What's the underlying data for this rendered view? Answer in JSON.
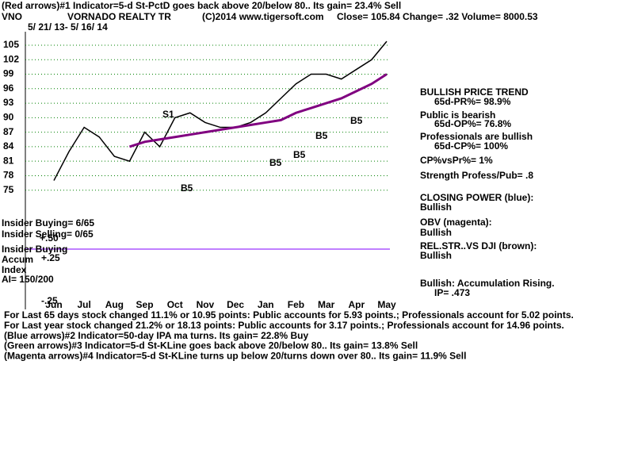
{
  "header": {
    "line1": "(Red arrows)#1 Indicator=5-d St-PctD goes back above 20/below 80.. Its gain= 23.4% Sell",
    "symbol": "VNO",
    "company": "VORNADO REALTY TR",
    "copyright": "(C)2014 www.tigersoft.com",
    "quote": "Close= 105.84  Change= .32 Volume= 8000.53",
    "dates": "5/ 21/ 13- 5/ 16/ 14"
  },
  "chart_data": {
    "type": "line",
    "categories": [
      "Jun",
      null,
      "Jul",
      null,
      "Aug",
      null,
      "Sep",
      null,
      "Oct",
      null,
      "Nov",
      null,
      "Dec",
      null,
      "Jan",
      null,
      "Feb",
      null,
      "Mar",
      null,
      "Apr",
      null,
      "May"
    ],
    "series": [
      {
        "color": "#000000",
        "values": [
          77,
          83,
          88,
          86,
          82,
          81,
          87,
          84,
          90,
          91,
          89,
          88,
          88,
          89,
          91,
          94,
          97,
          99,
          99,
          98,
          100,
          102,
          105.8
        ]
      },
      {
        "color": "#800080",
        "values": [
          null,
          null,
          null,
          null,
          null,
          84,
          85,
          85.5,
          86,
          86.5,
          87,
          87.5,
          88,
          88.5,
          89,
          89.5,
          91,
          92,
          93,
          94,
          95.5,
          97,
          99
        ]
      }
    ],
    "ylim": [
      72,
      108
    ],
    "yticks": [
      75,
      78,
      81,
      84,
      87,
      90,
      93,
      96,
      99,
      102,
      105
    ],
    "grid": true,
    "annotations": [
      "S1",
      "B5",
      "B5",
      "B5",
      "B5",
      "B5"
    ]
  },
  "indicators": [
    "Insider Buying= 6/65",
    "Insider Selling= 0/65",
    "+.50",
    "Insider Buying",
    "Accum",
    "+.25",
    "Index",
    "AI= 150/200",
    "-.25"
  ],
  "right_panel": [
    "BULLISH PRICE TREND",
    "65d-PR%= 98.9%",
    "Public is bearish",
    "65d-OP%= 76.8%",
    "Professionals are bullish",
    "65d-CP%= 100%",
    "CP%vsPr%=  1%",
    "Strength Profess/Pub= .8",
    "CLOSING POWER (blue):",
    "Bullish",
    "OBV (magenta):",
    "Bullish",
    "REL.STR..VS DJI (brown):",
    "Bullish",
    "Bullish: Accumulation Rising.",
    "IP=  .473"
  ],
  "footer": [
    "For Last 65 days stock changed  11.1% or  10.95 points:  Public accounts for  5.93 points.;  Professionals account for  5.02 points.",
    "For Last year stock changed  21.2% or  18.13 points:  Public accounts for  3.17 points.;  Professionals account for  14.96 points.",
    "(Blue arrows)#2 Indicator=50-day IPA ma turns. Its gain= 22.8% Buy",
    "(Green arrows)#3 Indicator=5-d St-KLine goes back above 20/below 80.. Its gain= 13.8% Sell",
    "(Magenta arrows)#4 Indicator=5-d St-KLine turns up below 20/turns down over 80.. Its gain= 11.9% Sell"
  ]
}
